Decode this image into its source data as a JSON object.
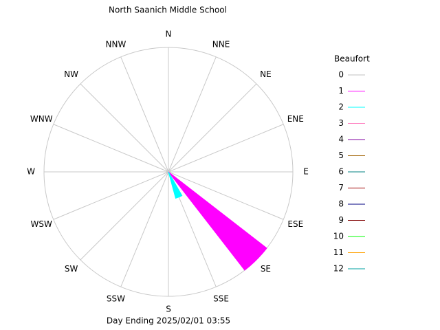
{
  "chart_data": {
    "type": "windrose",
    "title": "North Saanich Middle School",
    "footer": "Day Ending 2025/02/01 03:55",
    "legend_title": "Beaufort",
    "categories": [
      "N",
      "NNE",
      "NE",
      "ENE",
      "E",
      "ESE",
      "SE",
      "SSE",
      "S",
      "SSW",
      "SW",
      "WSW",
      "W",
      "WNW",
      "NW",
      "NNW"
    ],
    "rlim": [
      0,
      100
    ],
    "grid": true,
    "series": [
      {
        "name": "0",
        "color": "#c0c0c0",
        "values": [
          0,
          0,
          0,
          0,
          0,
          0,
          0,
          0,
          0,
          0,
          0,
          0,
          0,
          0,
          0,
          0
        ]
      },
      {
        "name": "1",
        "color": "#ff00ff",
        "values": [
          0,
          0,
          0,
          0,
          0,
          0,
          100,
          0,
          0,
          0,
          0,
          0,
          0,
          0,
          0,
          0
        ]
      },
      {
        "name": "2",
        "color": "#00ffff",
        "values": [
          0,
          0,
          0,
          0,
          0,
          0,
          0,
          22,
          0,
          0,
          0,
          0,
          0,
          0,
          0,
          0
        ]
      },
      {
        "name": "3",
        "color": "#ff80c0",
        "values": [
          0,
          0,
          0,
          0,
          0,
          0,
          0,
          0,
          0,
          0,
          0,
          0,
          0,
          0,
          0,
          0
        ]
      },
      {
        "name": "4",
        "color": "#8000a0",
        "values": [
          0,
          0,
          0,
          0,
          0,
          0,
          0,
          0,
          0,
          0,
          0,
          0,
          0,
          0,
          0,
          0
        ]
      },
      {
        "name": "5",
        "color": "#a06000",
        "values": [
          0,
          0,
          0,
          0,
          0,
          0,
          0,
          0,
          0,
          0,
          0,
          0,
          0,
          0,
          0,
          0
        ]
      },
      {
        "name": "6",
        "color": "#008080",
        "values": [
          0,
          0,
          0,
          0,
          0,
          0,
          0,
          0,
          0,
          0,
          0,
          0,
          0,
          0,
          0,
          0
        ]
      },
      {
        "name": "7",
        "color": "#a00000",
        "values": [
          0,
          0,
          0,
          0,
          0,
          0,
          0,
          0,
          0,
          0,
          0,
          0,
          0,
          0,
          0,
          0
        ]
      },
      {
        "name": "8",
        "color": "#000080",
        "values": [
          0,
          0,
          0,
          0,
          0,
          0,
          0,
          0,
          0,
          0,
          0,
          0,
          0,
          0,
          0,
          0
        ]
      },
      {
        "name": "9",
        "color": "#800000",
        "values": [
          0,
          0,
          0,
          0,
          0,
          0,
          0,
          0,
          0,
          0,
          0,
          0,
          0,
          0,
          0,
          0
        ]
      },
      {
        "name": "10",
        "color": "#00ff00",
        "values": [
          0,
          0,
          0,
          0,
          0,
          0,
          0,
          0,
          0,
          0,
          0,
          0,
          0,
          0,
          0,
          0
        ]
      },
      {
        "name": "11",
        "color": "#ffa000",
        "values": [
          0,
          0,
          0,
          0,
          0,
          0,
          0,
          0,
          0,
          0,
          0,
          0,
          0,
          0,
          0,
          0
        ]
      },
      {
        "name": "12",
        "color": "#00a0a0",
        "values": [
          0,
          0,
          0,
          0,
          0,
          0,
          0,
          0,
          0,
          0,
          0,
          0,
          0,
          0,
          0,
          0
        ]
      }
    ]
  }
}
